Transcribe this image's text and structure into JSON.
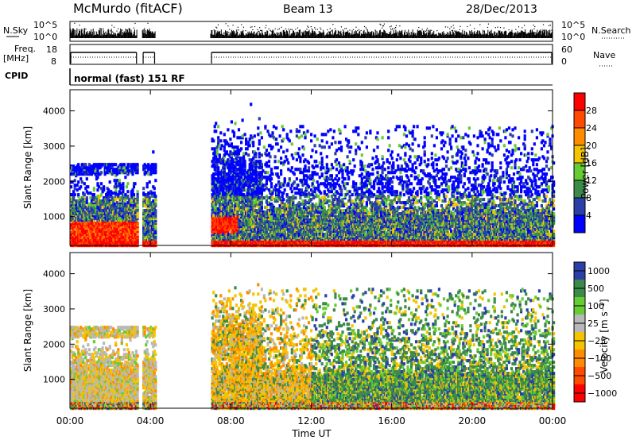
{
  "header": {
    "station": "McMurdo (fitACF)",
    "beam": "Beam 13",
    "date": "28/Dec/2013"
  },
  "strips": {
    "nsky_label": "N.Sky",
    "nsearch_label": "N.Search",
    "nsky_ticks": [
      "10^5",
      "10^0"
    ],
    "nsearch_ticks": [
      "10^5",
      "10^0"
    ],
    "freq_label_1": "Freq.",
    "freq_label_2": "[MHz]",
    "freq_ticks": [
      "18",
      "8"
    ],
    "nave_label": "Nave",
    "nave_ticks": [
      "60",
      "0"
    ],
    "cpid_label": "CPID",
    "cpid_text": "normal (fast) 151 RF"
  },
  "chart_data": [
    {
      "type": "heatmap",
      "name": "power",
      "ylabel": "Slant Range [km]",
      "ylim": [
        180,
        4600
      ],
      "yticks": [
        1000,
        2000,
        3000,
        4000
      ],
      "colorbar_label": "Power [dB]",
      "colorbar_ticks": [
        "4",
        "8",
        "12",
        "16",
        "20",
        "24",
        "28"
      ],
      "colors": [
        "#0000ff",
        "#2a3fa8",
        "#3c8a4a",
        "#66cc33",
        "#f5c400",
        "#ff8c00",
        "#ff4a00",
        "#ff0000"
      ],
      "data_gaps_hours": [
        [
          3.35,
          3.6
        ],
        [
          4.25,
          7.0
        ]
      ]
    },
    {
      "type": "heatmap",
      "name": "velocity",
      "ylabel": "Slant Range [km]",
      "ylim": [
        180,
        4600
      ],
      "yticks": [
        1000,
        2000,
        3000,
        4000
      ],
      "colorbar_label": "Velocity [m s⁻¹]",
      "colorbar_ticks": [
        "1000",
        "500",
        "100",
        "25",
        "−25",
        "−100",
        "−500",
        "−1000"
      ],
      "colors": [
        "#2a3fa8",
        "#3c8a4a",
        "#66cc33",
        "#b8b8b8",
        "#f5c400",
        "#ff8c00",
        "#ff4a00",
        "#ff0000"
      ],
      "xlabel": "Time UT",
      "xlim": [
        0,
        24
      ],
      "xticks": [
        "00:00",
        "04:00",
        "08:00",
        "12:00",
        "16:00",
        "20:00",
        "00:00"
      ],
      "data_gaps_hours": [
        [
          3.35,
          3.6
        ],
        [
          4.25,
          7.0
        ]
      ]
    }
  ]
}
